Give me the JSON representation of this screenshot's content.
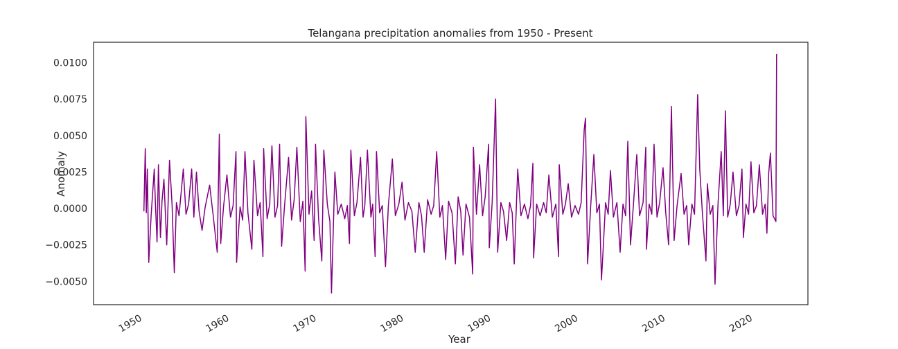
{
  "chart_data": {
    "type": "line",
    "title": "Telangana precipitation anomalies from 1950 - Present",
    "x_label": "Year",
    "y_label": "Anomaly",
    "color": "#800080",
    "xlim": [
      1945.5,
      2027.4
    ],
    "ylim": [
      -0.0066,
      0.0114
    ],
    "xticks": [
      1950,
      1960,
      1970,
      1980,
      1990,
      2000,
      2010,
      2020
    ],
    "yticks": [
      {
        "value": -0.005,
        "label": "−0.0050"
      },
      {
        "value": -0.0025,
        "label": "−0.0025"
      },
      {
        "value": 0,
        "label": "0.0000"
      },
      {
        "value": 0.0025,
        "label": "0.0025"
      },
      {
        "value": 0.005,
        "label": "0.0050"
      },
      {
        "value": 0.0075,
        "label": "0.0075"
      },
      {
        "value": 0.01,
        "label": "0.0100"
      }
    ],
    "grid": false,
    "x": [
      1951.27,
      1951.43,
      1951.55,
      1951.67,
      1951.83,
      1952.1,
      1952.46,
      1952.6,
      1952.78,
      1952.94,
      1953.17,
      1953.35,
      1953.57,
      1953.89,
      1954.21,
      1954.5,
      1954.76,
      1955.0,
      1955.3,
      1955.79,
      1956.1,
      1956.4,
      1956.75,
      1957.0,
      1957.3,
      1957.6,
      1957.94,
      1958.3,
      1958.81,
      1959.2,
      1959.68,
      1959.92,
      1960.08,
      1960.4,
      1960.79,
      1961.2,
      1961.5,
      1961.83,
      1961.9,
      1962.3,
      1962.6,
      1962.86,
      1963.2,
      1963.65,
      1963.89,
      1964.3,
      1964.6,
      1964.92,
      1965.0,
      1965.4,
      1965.7,
      1965.95,
      1966.3,
      1966.6,
      1966.83,
      1967.06,
      1967.4,
      1967.86,
      1968.2,
      1968.5,
      1968.81,
      1969.2,
      1969.5,
      1969.76,
      1969.84,
      1970.2,
      1970.5,
      1970.79,
      1970.95,
      1971.3,
      1971.67,
      1971.9,
      1972.3,
      1972.6,
      1972.78,
      1973.17,
      1973.5,
      1973.9,
      1974.3,
      1974.6,
      1974.84,
      1975.0,
      1975.4,
      1975.7,
      1976.11,
      1976.4,
      1976.6,
      1976.9,
      1977.3,
      1977.5,
      1977.78,
      1977.94,
      1978.3,
      1978.6,
      1978.97,
      1979.3,
      1979.76,
      1980.1,
      1980.5,
      1980.87,
      1981.2,
      1981.6,
      1982.0,
      1982.38,
      1982.8,
      1983.1,
      1983.41,
      1983.8,
      1984.2,
      1984.5,
      1984.84,
      1985.2,
      1985.5,
      1985.87,
      1986.2,
      1986.6,
      1986.98,
      1987.3,
      1987.6,
      1987.86,
      1988.2,
      1988.6,
      1988.97,
      1989.05,
      1989.4,
      1989.76,
      1990.1,
      1990.4,
      1990.79,
      1990.87,
      1991.2,
      1991.59,
      1991.83,
      1992.2,
      1992.5,
      1992.86,
      1993.2,
      1993.5,
      1993.73,
      1994.13,
      1994.5,
      1994.9,
      1995.3,
      1995.6,
      1995.87,
      1995.95,
      1996.3,
      1996.7,
      1997.1,
      1997.4,
      1997.7,
      1998.1,
      1998.5,
      1998.81,
      1998.89,
      1999.3,
      1999.6,
      1999.92,
      2000.3,
      2000.7,
      2001.1,
      2001.4,
      2001.75,
      2001.9,
      2002.14,
      2002.5,
      2002.86,
      2003.2,
      2003.5,
      2003.73,
      2003.89,
      2004.2,
      2004.5,
      2004.76,
      2005.1,
      2005.5,
      2005.87,
      2006.2,
      2006.5,
      2006.75,
      2007.06,
      2007.4,
      2007.78,
      2008.1,
      2008.5,
      2008.81,
      2008.89,
      2009.2,
      2009.5,
      2009.76,
      2010.1,
      2010.4,
      2010.79,
      2011.1,
      2011.43,
      2011.75,
      2012.06,
      2012.4,
      2012.86,
      2013.2,
      2013.5,
      2013.73,
      2014.1,
      2014.4,
      2014.76,
      2015.0,
      2015.3,
      2015.71,
      2015.87,
      2016.2,
      2016.5,
      2016.75,
      2017.1,
      2017.46,
      2017.7,
      2017.94,
      2018.2,
      2018.5,
      2018.81,
      2019.2,
      2019.5,
      2019.84,
      2020.0,
      2020.3,
      2020.6,
      2020.87,
      2021.2,
      2021.5,
      2021.83,
      2022.2,
      2022.5,
      2022.7,
      2022.9,
      2023.1,
      2023.4,
      2023.73,
      2023.81
    ],
    "values": [
      -0.0002,
      0.0041,
      -0.0003,
      0.0027,
      -0.0037,
      -0.0005,
      0.0027,
      0.0002,
      -0.0023,
      0.003,
      -0.002,
      0.0005,
      0.002,
      -0.0025,
      0.0033,
      0.0003,
      -0.0044,
      0.0004,
      -0.0005,
      0.0027,
      -0.0004,
      0.0003,
      0.0027,
      -0.0006,
      0.0025,
      -0.0002,
      -0.0015,
      0.0001,
      0.0016,
      -0.0004,
      -0.003,
      0.0051,
      -0.0024,
      0.0001,
      0.0023,
      -0.0006,
      0.0002,
      0.0039,
      -0.0037,
      0.0001,
      -0.0008,
      0.0039,
      -0.0003,
      -0.0028,
      0.0033,
      -0.0005,
      0.0004,
      -0.0033,
      0.0041,
      -0.0007,
      0.0003,
      0.0043,
      -0.0006,
      0.0002,
      0.0044,
      -0.0026,
      0.0002,
      0.0035,
      -0.0008,
      0.0006,
      0.0042,
      -0.0009,
      0.0005,
      -0.0043,
      0.0063,
      -0.0004,
      0.0012,
      -0.0022,
      0.0044,
      -0.0007,
      -0.0036,
      0.004,
      0.0003,
      -0.0009,
      -0.0058,
      0.0025,
      -0.0004,
      0.0003,
      -0.0007,
      0.0002,
      -0.0024,
      0.004,
      -0.0005,
      0.0004,
      0.0035,
      -0.0006,
      0.0002,
      0.004,
      -0.0006,
      0.0003,
      -0.0033,
      0.0039,
      -0.0003,
      0.0002,
      -0.004,
      0.0002,
      0.0034,
      -0.0005,
      0.0003,
      0.0018,
      -0.0008,
      0.0004,
      -0.0002,
      -0.003,
      0.0004,
      -0.0005,
      -0.003,
      0.0006,
      -0.0004,
      0.0002,
      0.0039,
      -0.0006,
      0.0002,
      -0.0035,
      0.0005,
      -0.0003,
      -0.0038,
      0.0008,
      -0.0002,
      -0.0032,
      0.0003,
      -0.0006,
      -0.0045,
      0.0042,
      -0.0004,
      0.003,
      -0.0005,
      0.0008,
      0.0044,
      -0.0027,
      0.0004,
      0.0075,
      -0.003,
      0.0004,
      -0.0002,
      -0.0022,
      0.0004,
      -0.0003,
      -0.0038,
      0.0027,
      -0.0005,
      0.0003,
      -0.0007,
      0.0002,
      0.0031,
      -0.0034,
      0.0003,
      -0.0005,
      0.0004,
      -0.0003,
      0.0023,
      -0.0006,
      0.0003,
      -0.0033,
      0.003,
      -0.0004,
      0.0003,
      0.0017,
      -0.0006,
      0.0002,
      -0.0004,
      0.0004,
      0.0054,
      0.0062,
      -0.0038,
      0.0002,
      0.0037,
      -0.0003,
      0.0003,
      -0.0049,
      -0.0032,
      0.0004,
      -0.0004,
      0.0026,
      -0.0006,
      0.0004,
      -0.003,
      0.0003,
      -0.0005,
      0.0046,
      -0.0025,
      0.0003,
      0.0037,
      -0.0005,
      0.0004,
      0.0042,
      -0.0028,
      0.0003,
      -0.0004,
      0.0044,
      -0.0006,
      0.0004,
      0.0028,
      -0.0003,
      -0.0025,
      0.007,
      -0.0022,
      0.0002,
      0.0024,
      -0.0004,
      0.0002,
      -0.0025,
      0.0003,
      -0.0004,
      0.0078,
      0.0027,
      -0.0003,
      -0.0036,
      0.0017,
      -0.0004,
      0.0002,
      -0.0052,
      0.0004,
      0.0039,
      -0.0005,
      0.0067,
      -0.0006,
      0.0003,
      0.0025,
      -0.0005,
      0.0002,
      0.0027,
      -0.002,
      0.0003,
      -0.0004,
      0.0032,
      -0.0003,
      0.0002,
      0.003,
      -0.0004,
      0.0003,
      -0.0017,
      0.0024,
      0.0038,
      -0.0005,
      -0.0009,
      0.0106
    ]
  }
}
